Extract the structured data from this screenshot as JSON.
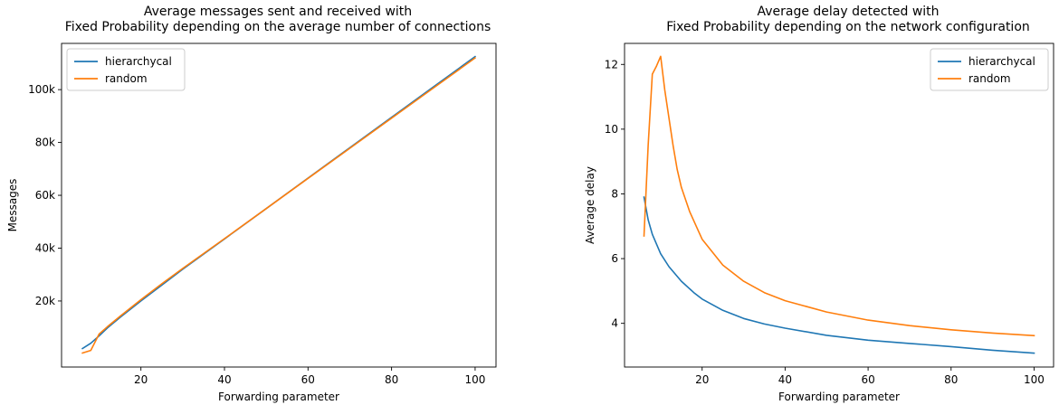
{
  "colors": {
    "hierarchycal": "#1f77b4",
    "random": "#ff7f0e"
  },
  "chart_data": [
    {
      "type": "line",
      "title": "Average messages sent and received with\nFixed Probability depending on the average number of connections",
      "xlabel": "Forwarding parameter",
      "ylabel": "Messages",
      "xlim": [
        1,
        105
      ],
      "ylim": [
        -5000,
        117500
      ],
      "xticks": [
        20,
        40,
        60,
        80,
        100
      ],
      "xtick_labels": [
        "20",
        "40",
        "60",
        "80",
        "100"
      ],
      "yticks": [
        20000,
        40000,
        60000,
        80000,
        100000
      ],
      "ytick_labels": [
        "20k",
        "40k",
        "60k",
        "80k",
        "100k"
      ],
      "grid": false,
      "legend": "top-left",
      "series": [
        {
          "name": "hierarchycal",
          "x": [
            6,
            8,
            10,
            12,
            15,
            20,
            25,
            30,
            40,
            50,
            60,
            70,
            80,
            90,
            100
          ],
          "y": [
            2000,
            4000,
            6800,
            9800,
            13800,
            20000,
            26000,
            32000,
            43500,
            55000,
            66500,
            78000,
            89500,
            101000,
            112500
          ]
        },
        {
          "name": "random",
          "x": [
            6,
            8,
            10,
            12,
            15,
            20,
            25,
            30,
            40,
            50,
            60,
            70,
            80,
            90,
            100
          ],
          "y": [
            300,
            1300,
            7500,
            10300,
            14200,
            20500,
            26500,
            32300,
            43600,
            55000,
            66400,
            77800,
            89200,
            100600,
            112000
          ]
        }
      ]
    },
    {
      "type": "line",
      "title": "Average delay detected with\nFixed Probability depending on the network configuration",
      "xlabel": "Forwarding parameter",
      "ylabel": "Average delay",
      "xlim": [
        1.3,
        104.7
      ],
      "ylim": [
        2.65,
        12.65
      ],
      "xticks": [
        20,
        40,
        60,
        80,
        100
      ],
      "xtick_labels": [
        "20",
        "40",
        "60",
        "80",
        "100"
      ],
      "yticks": [
        4,
        6,
        8,
        10,
        12
      ],
      "ytick_labels": [
        "4",
        "6",
        "8",
        "10",
        "12"
      ],
      "grid": false,
      "legend": "top-right",
      "series": [
        {
          "name": "hierarchycal",
          "x": [
            6,
            7,
            8,
            10,
            12,
            15,
            18,
            20,
            25,
            30,
            35,
            40,
            50,
            60,
            70,
            80,
            90,
            100
          ],
          "y": [
            7.9,
            7.2,
            6.75,
            6.15,
            5.75,
            5.3,
            4.95,
            4.75,
            4.4,
            4.15,
            3.98,
            3.85,
            3.63,
            3.48,
            3.38,
            3.28,
            3.17,
            3.08
          ]
        },
        {
          "name": "random",
          "x": [
            6,
            7,
            8,
            9,
            10,
            11,
            13,
            14,
            15,
            17,
            20,
            25,
            30,
            35,
            40,
            50,
            60,
            70,
            80,
            90,
            100
          ],
          "y": [
            6.7,
            9.5,
            11.7,
            11.95,
            12.25,
            11.2,
            9.5,
            8.75,
            8.2,
            7.45,
            6.6,
            5.8,
            5.3,
            4.95,
            4.7,
            4.35,
            4.1,
            3.93,
            3.8,
            3.7,
            3.62
          ]
        }
      ]
    }
  ]
}
